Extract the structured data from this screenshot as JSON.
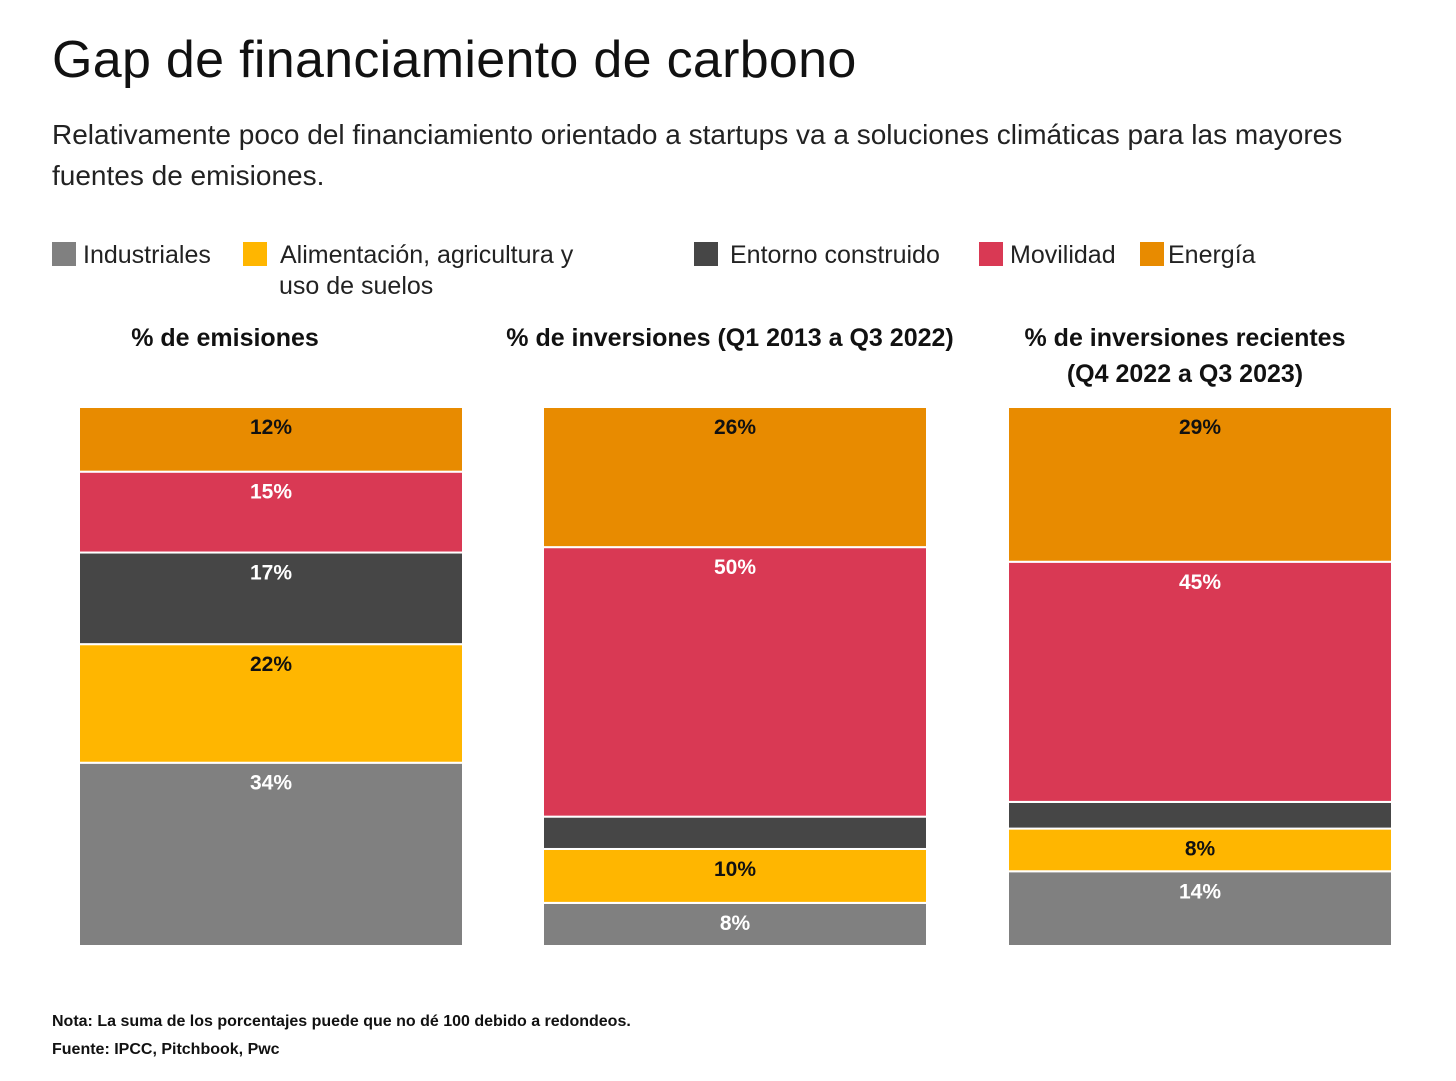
{
  "title": "Gap de financiamiento de carbono",
  "subtitle": "Relativamente poco del financiamiento orientado a startups va a soluciones climáticas para las mayores fuentes de emisiones.",
  "legend": [
    {
      "label": "Industriales",
      "color": "#808080"
    },
    {
      "label": "Alimentación, agricultura y",
      "label2": "uso de suelos",
      "color": "#FFB600"
    },
    {
      "label": "Entorno construido",
      "color": "#464646"
    },
    {
      "label": "Movilidad",
      "color": "#D93954"
    },
    {
      "label": "Energía",
      "color": "#E88B00"
    }
  ],
  "chart_data": {
    "type": "bar",
    "stacked": true,
    "categories": [
      "% de emisiones",
      "% de inversiones (Q1 2013 a Q3 2022)",
      "% de inversiones recientes (Q4 2022 a Q3 2023)"
    ],
    "panel_titles": [
      {
        "line1": "% de emisiones",
        "line2": ""
      },
      {
        "line1": "% de inversiones (Q1 2013 a Q3 2022)",
        "line2": ""
      },
      {
        "line1": "% de inversiones recientes",
        "line2": "(Q4 2022 a Q3 2023)"
      }
    ],
    "series": [
      {
        "name": "Industriales",
        "color": "#808080",
        "values": [
          34,
          8,
          14
        ],
        "labels": [
          "34%",
          "8%",
          "14%"
        ],
        "label_color": "#ffffff"
      },
      {
        "name": "Alimentación, agricultura y uso de suelos",
        "color": "#FFB600",
        "values": [
          22,
          10,
          8
        ],
        "labels": [
          "22%",
          "10%",
          "8%"
        ],
        "label_color": "#111111"
      },
      {
        "name": "Entorno construido",
        "color": "#464646",
        "values": [
          17,
          6,
          5
        ],
        "labels": [
          "17%",
          "",
          ""
        ],
        "label_color": "#ffffff"
      },
      {
        "name": "Movilidad",
        "color": "#D93954",
        "values": [
          15,
          50,
          45
        ],
        "labels": [
          "15%",
          "50%",
          "45%"
        ],
        "label_color": "#ffffff"
      },
      {
        "name": "Energía",
        "color": "#E88B00",
        "values": [
          12,
          26,
          29
        ],
        "labels": [
          "12%",
          "26%",
          "29%"
        ],
        "label_color": "#111111"
      }
    ],
    "ylim": [
      0,
      100
    ]
  },
  "footer": {
    "note": "Nota: La suma de los porcentajes puede que no dé 100 debido a redondeos.",
    "source": "Fuente: IPCC, Pitchbook, Pwc"
  }
}
